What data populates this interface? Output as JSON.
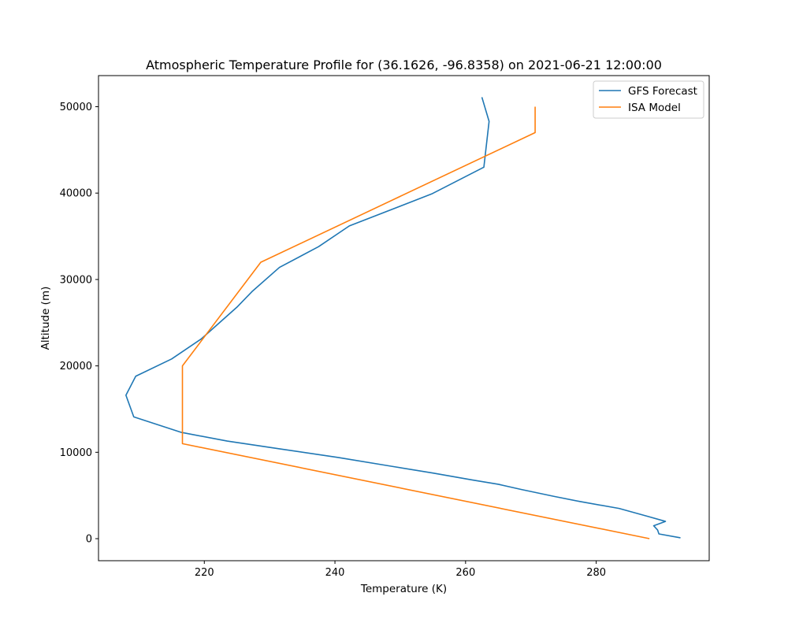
{
  "chart_data": {
    "type": "line",
    "title": "Atmospheric Temperature Profile for (36.1626, -96.8358) on 2021-06-21 12:00:00",
    "xlabel": "Temperature (K)",
    "ylabel": "Altitude (m)",
    "xlim": [
      203.8,
      297.3
    ],
    "ylim": [
      -2550,
      53600
    ],
    "xticks": [
      220,
      240,
      260,
      280
    ],
    "yticks": [
      0,
      10000,
      20000,
      30000,
      40000,
      50000
    ],
    "grid": false,
    "legend_position": "upper-right",
    "series": [
      {
        "name": "GFS Forecast",
        "color": "#1f77b4",
        "points": [
          [
            292.9,
            100
          ],
          [
            289.6,
            550
          ],
          [
            289.4,
            1000
          ],
          [
            288.8,
            1500
          ],
          [
            290.6,
            2000
          ],
          [
            287.8,
            2600
          ],
          [
            283.5,
            3500
          ],
          [
            277.5,
            4300
          ],
          [
            273.5,
            4900
          ],
          [
            268.5,
            5700
          ],
          [
            265.0,
            6300
          ],
          [
            261.0,
            6800
          ],
          [
            255.0,
            7600
          ],
          [
            248.5,
            8400
          ],
          [
            240.5,
            9400
          ],
          [
            231.5,
            10400
          ],
          [
            223.5,
            11300
          ],
          [
            216.5,
            12300
          ],
          [
            209.2,
            14100
          ],
          [
            208.0,
            16600
          ],
          [
            209.5,
            18800
          ],
          [
            215.0,
            20800
          ],
          [
            219.5,
            23100
          ],
          [
            225.0,
            26800
          ],
          [
            227.3,
            28600
          ],
          [
            231.5,
            31400
          ],
          [
            237.5,
            33800
          ],
          [
            242.2,
            36200
          ],
          [
            254.8,
            39900
          ],
          [
            262.8,
            43000
          ],
          [
            263.6,
            48300
          ],
          [
            262.5,
            51100
          ]
        ]
      },
      {
        "name": "ISA Model",
        "color": "#ff7f0e",
        "points": [
          [
            288.15,
            0
          ],
          [
            216.65,
            11000
          ],
          [
            216.65,
            20000
          ],
          [
            228.65,
            32000
          ],
          [
            270.65,
            47000
          ],
          [
            270.65,
            50000
          ]
        ]
      }
    ]
  }
}
